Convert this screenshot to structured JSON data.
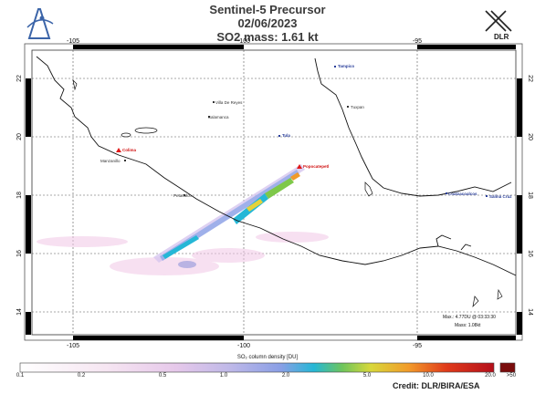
{
  "header": {
    "line1": "Sentinel-5 Precursor",
    "line2": "02/06/2023",
    "line3": "SO2 mass:  1.61   kt"
  },
  "logos": {
    "right_text": "DLR"
  },
  "map": {
    "lon_ticks": [
      "-105",
      "-100",
      "-95"
    ],
    "lat_ticks": [
      "22",
      "20",
      "18",
      "16",
      "14"
    ],
    "places": {
      "tampico": "Tampico",
      "villa_de_reyes": "Villa De Reyes",
      "tuxpan": "Tuxpan",
      "salamanca": "Salamanca",
      "tula": "Tula",
      "colima": "Colima",
      "popocatepetl": "Popocatepetl",
      "manzanillo": "Manzanillo",
      "petacalco": "Petacalco",
      "coatzacoalcos": "Coatzacoalcos",
      "salina_cruz": "Salina Cruz"
    },
    "stats": {
      "max": "Max.: 4.77DU @ 03:33:30",
      "mass": "Mass:    1.08kt"
    }
  },
  "colorbar": {
    "title": "SO₂ column density [DU]",
    "labels": [
      "0.1",
      "0.2",
      "0.5",
      "1.0",
      "2.0",
      "5.0",
      "10.0",
      "20.0",
      ">50"
    ]
  },
  "footer": {
    "credit": "Credit: DLR/BIRA/ESA"
  },
  "colors": {
    "coast": "#111111",
    "volcano_marker": "#e01818",
    "city_marker": "#2a3f9a",
    "plume_core": "#25b7d6",
    "plume_mid": "#7ec84a"
  }
}
